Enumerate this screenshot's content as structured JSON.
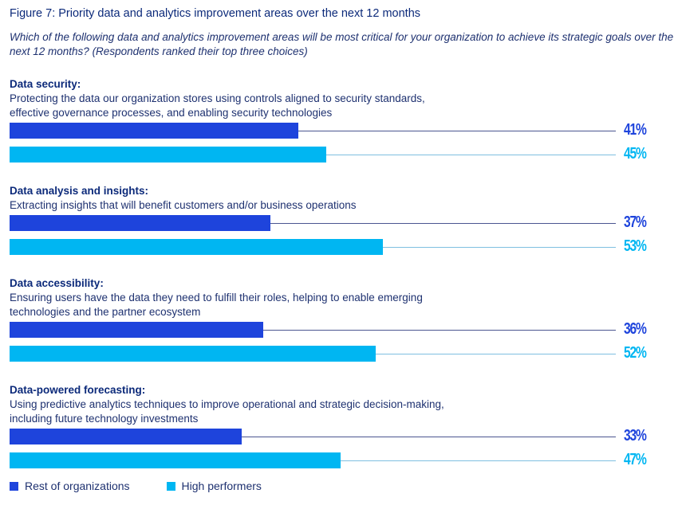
{
  "chart_data": {
    "type": "bar",
    "orientation": "horizontal",
    "title": "Figure 7: Priority data and analytics improvement areas over the next 12 months",
    "subtitle": "Which of the following data and analytics improvement areas will be most critical for your organization to achieve its strategic goals over the next 12 months? (Respondents ranked their top three choices)",
    "xlim": [
      0,
      100
    ],
    "unit": "%",
    "categories": [
      {
        "heading": "Data security:",
        "description": [
          "Protecting the data our organization stores using controls aligned to security standards,",
          "effective governance processes, and enabling security technologies"
        ]
      },
      {
        "heading": "Data analysis and insights:",
        "description": [
          "Extracting insights that will benefit customers and/or business operations"
        ]
      },
      {
        "heading": "Data accessibility:",
        "description": [
          "Ensuring users have the data they need to fulfill their roles, helping to enable emerging",
          "technologies and the partner ecosystem"
        ]
      },
      {
        "heading": "Data-powered forecasting:",
        "description": [
          "Using predictive analytics techniques to improve operational and strategic decision-making,",
          "including future technology investments"
        ]
      }
    ],
    "series": [
      {
        "name": "Rest of organizations",
        "color": "#1e44dc",
        "line_color": "#4a5590",
        "values": [
          41,
          37,
          36,
          33
        ],
        "labels": [
          "41%",
          "37%",
          "36%",
          "33%"
        ]
      },
      {
        "name": "High performers",
        "color": "#00b6f2",
        "line_color": "#7fbfe0",
        "values": [
          45,
          53,
          52,
          47
        ],
        "labels": [
          "45%",
          "53%",
          "52%",
          "47%"
        ]
      }
    ],
    "legend": "bottom-left"
  }
}
